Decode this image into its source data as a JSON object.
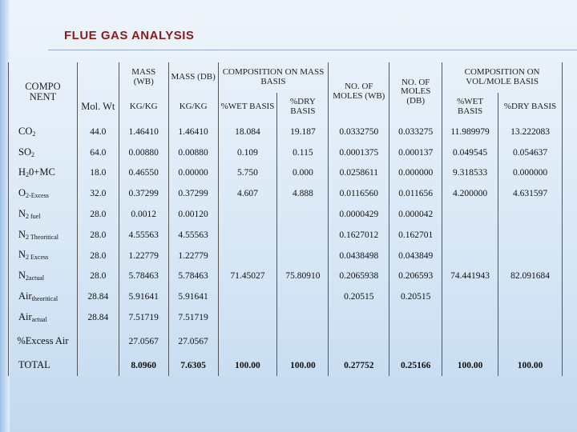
{
  "title": "FLUE GAS ANALYSIS",
  "headers": {
    "component": "COMPO NENT",
    "mol_wt": "Mol. Wt",
    "mass_wb": "MASS (WB)",
    "mass_db": "MASS (DB)",
    "comp_mass": "COMPOSITION ON MASS BASIS",
    "moles_wb": "NO. OF MOLES (WB)",
    "moles_db": "NO. OF MOLES (DB)",
    "comp_vol": "COMPOSITION ON VOL/MOLE BASIS",
    "kg1": "KG/KG",
    "kg2": "KG/KG",
    "wet1": "%WET BASIS",
    "dry1": "%DRY BASIS",
    "wet2": "%WET BASIS",
    "dry2": "%DRY BASIS"
  },
  "rows": [
    {
      "base": "CO",
      "sub": "2",
      "molwt": "44.0",
      "mwb": "1.46410",
      "mdb": "1.46410",
      "wm": "18.084",
      "dm": "19.187",
      "nwb": "0.0332750",
      "ndb": "0.033275",
      "wv": "11.989979",
      "dv": "13.222083"
    },
    {
      "base": "SO",
      "sub": "2",
      "molwt": "64.0",
      "mwb": "0.00880",
      "mdb": "0.00880",
      "wm": "0.109",
      "dm": "0.115",
      "nwb": "0.0001375",
      "ndb": "0.000137",
      "wv": "0.049545",
      "dv": "0.054637"
    },
    {
      "base": "H",
      "sub": "2",
      "tail": "0+MC",
      "molwt": "18.0",
      "mwb": "0.46550",
      "mdb": "0.00000",
      "wm": "5.750",
      "dm": "0.000",
      "nwb": "0.0258611",
      "ndb": "0.000000",
      "wv": "9.318533",
      "dv": "0.000000"
    },
    {
      "base": "O",
      "sub": "2-Excess",
      "molwt": "32.0",
      "mwb": "0.37299",
      "mdb": "0.37299",
      "wm": "4.607",
      "dm": "4.888",
      "nwb": "0.0116560",
      "ndb": "0.011656",
      "wv": "4.200000",
      "dv": "4.631597"
    },
    {
      "base": "N",
      "sub": "2 fuel",
      "molwt": "28.0",
      "mwb": "0.0012",
      "mdb": "0.00120",
      "wm": "",
      "dm": "",
      "nwb": "0.0000429",
      "ndb": "0.000042",
      "wv": "",
      "dv": ""
    },
    {
      "base": "N",
      "sub": "2 Theoritical",
      "molwt": "28.0",
      "mwb": "4.55563",
      "mdb": "4.55563",
      "wm": "",
      "dm": "",
      "nwb": "0.1627012",
      "ndb": "0.162701",
      "wv": "",
      "dv": ""
    },
    {
      "base": "N",
      "sub": "2 Excess",
      "molwt": "28.0",
      "mwb": "1.22779",
      "mdb": "1.22779",
      "wm": "",
      "dm": "",
      "nwb": "0.0438498",
      "ndb": "0.043849",
      "wv": "",
      "dv": ""
    },
    {
      "base": "N",
      "sub": "2actual",
      "molwt": "28.0",
      "mwb": "5.78463",
      "mdb": "5.78463",
      "wm": "71.45027",
      "dm": "75.80910",
      "nwb": "0.2065938",
      "ndb": "0.206593",
      "wv": "74.441943",
      "dv": "82.091684"
    },
    {
      "base": "Air",
      "sub": "theoritical",
      "molwt": "28.84",
      "mwb": "5.91641",
      "mdb": "5.91641",
      "wm": "",
      "dm": "",
      "nwb": "0.20515",
      "ndb": "0.20515",
      "wv": "",
      "dv": ""
    },
    {
      "base": "Air",
      "sub": "actual",
      "molwt": "28.84",
      "mwb": "7.51719",
      "mdb": "7.51719",
      "wm": "",
      "dm": "",
      "nwb": "",
      "ndb": "",
      "wv": "",
      "dv": ""
    },
    {
      "base": "%Excess Air",
      "sub": "",
      "molwt": "",
      "mwb": "27.0567",
      "mdb": "27.0567",
      "wm": "",
      "dm": "",
      "nwb": "",
      "ndb": "",
      "wv": "",
      "dv": ""
    },
    {
      "base": "TOTAL",
      "sub": "",
      "molwt": "",
      "mwb": "8.0960",
      "mdb": "7.6305",
      "wm": "100.00",
      "dm": "100.00",
      "nwb": "0.27752",
      "ndb": "0.25166",
      "wv": "100.00",
      "dv": "100.00"
    }
  ]
}
